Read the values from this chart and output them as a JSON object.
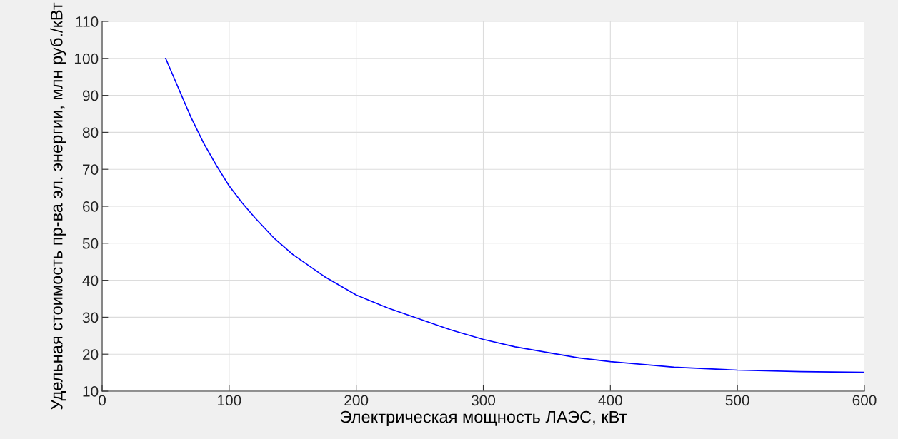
{
  "chart_data": {
    "type": "line",
    "xlabel": "Электрическая мощность ЛАЭС, кВт",
    "ylabel": "Удельная стоимость пр-ва эл. энергии, млн руб./кВт",
    "series": [
      {
        "color": "#0000ff",
        "x": [
          50,
          60,
          70,
          80,
          90,
          100,
          110,
          120,
          135,
          150,
          175,
          200,
          225,
          250,
          275,
          300,
          325,
          350,
          375,
          400,
          450,
          500,
          550,
          600
        ],
        "values": [
          100,
          92,
          84,
          77,
          71,
          65.5,
          61,
          57,
          51.5,
          47,
          41,
          36,
          32.5,
          29.5,
          26.5,
          24,
          22,
          20.5,
          19,
          18,
          16.5,
          15.7,
          15.3,
          15.1
        ]
      }
    ],
    "xlim": [
      0,
      600
    ],
    "xticks": [
      0,
      100,
      200,
      300,
      400,
      500,
      600
    ],
    "ylim": [
      10,
      110
    ],
    "yticks": [
      10,
      20,
      30,
      40,
      50,
      60,
      70,
      80,
      90,
      100,
      110
    ],
    "grid": true,
    "marker": "none",
    "line_style": "solid"
  }
}
